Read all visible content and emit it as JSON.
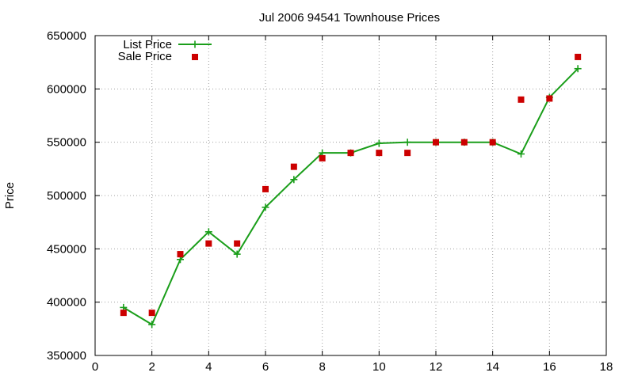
{
  "chart_data": {
    "type": "line",
    "title": "Jul 2006 94541 Townhouse Prices",
    "xlabel": "",
    "ylabel": "Price",
    "xlim": [
      0,
      18
    ],
    "ylim": [
      350000,
      650000
    ],
    "xticks": [
      0,
      2,
      4,
      6,
      8,
      10,
      12,
      14,
      16,
      18
    ],
    "yticks": [
      350000,
      400000,
      450000,
      500000,
      550000,
      600000,
      650000
    ],
    "grid": true,
    "legend_position": "top-left",
    "series": [
      {
        "name": "List Price",
        "style": "line-plus",
        "color": "#1a9e1a",
        "x": [
          1,
          2,
          3,
          4,
          5,
          6,
          7,
          8,
          9,
          10,
          11,
          12,
          13,
          14,
          15,
          16,
          17
        ],
        "y": [
          395000,
          379000,
          440000,
          466000,
          445000,
          489000,
          515000,
          540000,
          540000,
          549000,
          550000,
          550000,
          550000,
          550000,
          539000,
          592000,
          619000
        ]
      },
      {
        "name": "Sale Price",
        "style": "square-points",
        "color": "#cc0000",
        "x": [
          1,
          2,
          3,
          4,
          5,
          6,
          7,
          8,
          9,
          10,
          11,
          12,
          13,
          14,
          15,
          16,
          17
        ],
        "y": [
          390000,
          390000,
          445000,
          455000,
          455000,
          506000,
          527000,
          535000,
          540000,
          540000,
          540000,
          550000,
          550000,
          550000,
          590000,
          591000,
          630000
        ]
      }
    ]
  }
}
